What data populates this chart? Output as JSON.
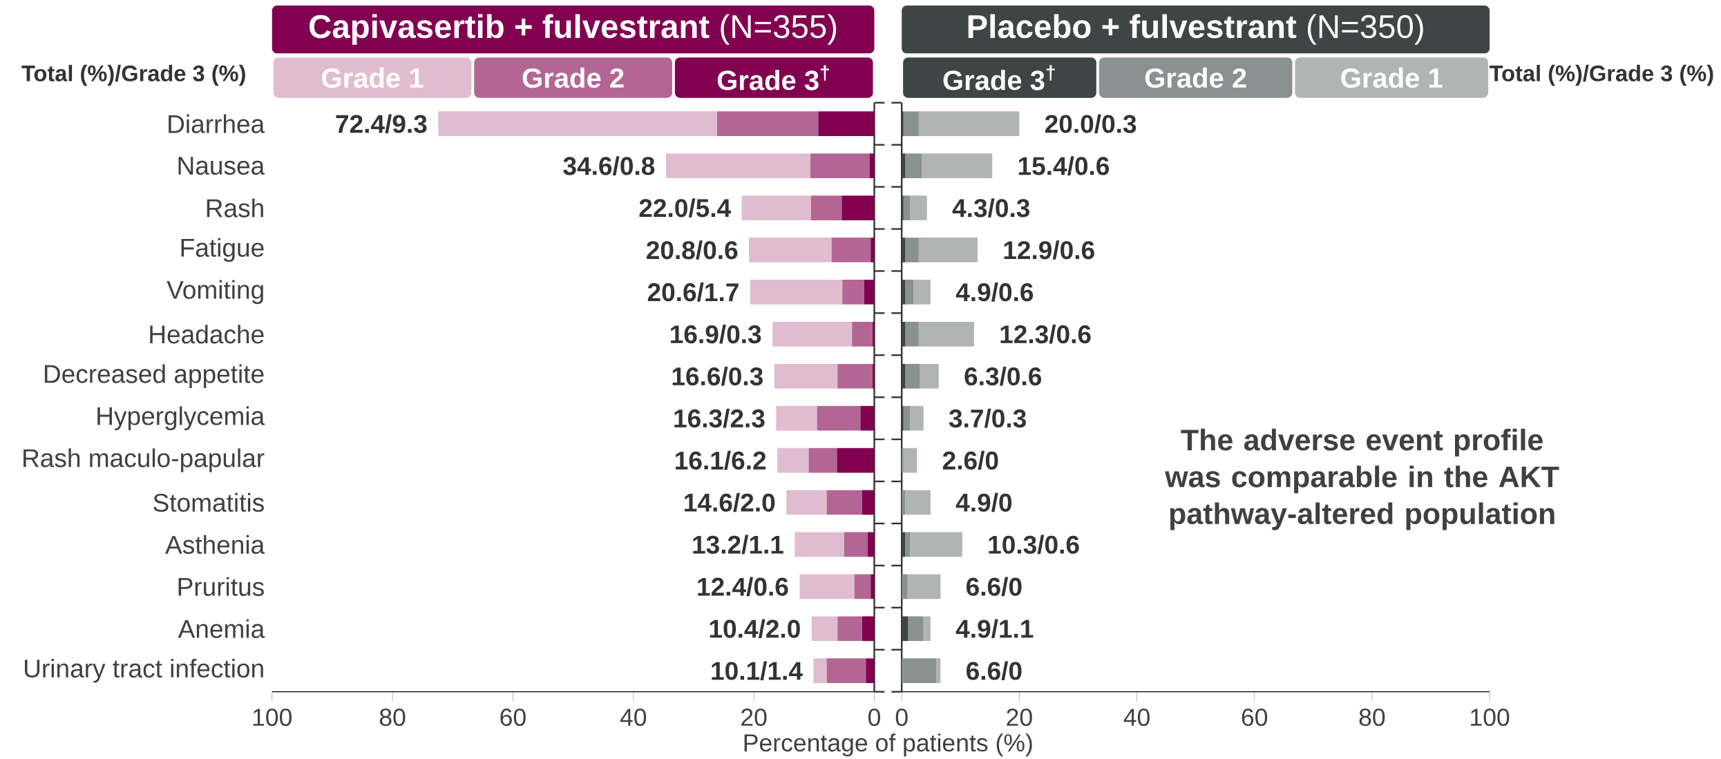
{
  "chart_data": [
    {
      "type": "bar",
      "orientation": "horizontal",
      "stacked": true,
      "title": "**Capivasertib + fulvestrant** (N=355)",
      "xlabel": "Percentage of patients (%)",
      "legend": "top",
      "categories": [
        "Diarrhea",
        "Nausea",
        "Rash",
        "Fatigue",
        "Vomiting",
        "Headache",
        "Decreased appetite",
        "Hyperglycemia",
        "Rash maculo-papular",
        "Stomatitis",
        "Asthenia",
        "Pruritus",
        "Anemia",
        "Urinary tract infection"
      ],
      "series": [
        {
          "name": "Grade 3$^{†}$",
          "color": "#820050",
          "values": [
            9.3,
            0.8,
            5.4,
            0.6,
            1.7,
            0.3,
            0.3,
            2.3,
            6.2,
            2.0,
            1.1,
            0.6,
            2.0,
            1.4
          ]
        },
        {
          "name": "Grade 2",
          "color": "#b36693",
          "values": [
            16.8,
            9.8,
            5.1,
            6.5,
            3.6,
            3.4,
            5.8,
            7.2,
            4.7,
            5.9,
            3.9,
            2.7,
            4.1,
            6.5
          ]
        },
        {
          "name": "Grade 1",
          "color": "#e0bcd1",
          "values": [
            46.3,
            24.0,
            11.5,
            13.7,
            15.3,
            13.2,
            10.5,
            6.8,
            5.2,
            6.7,
            8.2,
            9.1,
            4.3,
            2.2
          ]
        }
      ],
      "totals": [
        "72.4/9.3",
        "34.6/0.8",
        "22.0/5.4",
        "20.8/0.6",
        "20.6/1.7",
        "16.9/0.3",
        "16.6/0.3",
        "16.3/2.3",
        "16.1/6.2",
        "14.6/2.0",
        "13.2/1.1",
        "12.4/0.6",
        "10.4/2.0",
        "10.1/1.4"
      ],
      "xlim": [
        100,
        0
      ],
      "xticks": [
        100,
        80,
        60,
        40,
        20,
        0
      ],
      "annotations": [
        "Total (%)/Grade 3 (%)"
      ]
    },
    {
      "type": "bar",
      "orientation": "horizontal",
      "stacked": true,
      "title": "**Placebo + fulvestrant** (N=350)",
      "legend": "top",
      "categories": [
        null,
        null,
        null,
        null,
        null,
        null,
        null,
        null,
        null,
        null,
        null,
        null,
        null,
        null
      ],
      "series": [
        {
          "name": "Grade 3$^{†}$",
          "color": "#3f4444",
          "values": [
            0.3,
            0.6,
            0.3,
            0.6,
            0.6,
            0.6,
            0.6,
            0.3,
            0,
            0,
            0.6,
            0,
            1.1,
            0
          ]
        },
        {
          "name": "Grade 2",
          "color": "#899191",
          "values": [
            2.6,
            2.8,
            1.1,
            2.3,
            1.4,
            2.3,
            2.5,
            1.1,
            0.3,
            0.6,
            0.8,
            1.0,
            2.6,
            5.9
          ]
        },
        {
          "name": "Grade 1",
          "color": "#b0b5b4",
          "values": [
            17.1,
            12.0,
            2.9,
            10.0,
            2.9,
            9.4,
            3.2,
            2.3,
            2.3,
            4.3,
            8.9,
            5.6,
            1.2,
            0.7
          ]
        }
      ],
      "totals": [
        "20.0/0.3",
        "15.4/0.6",
        "4.3/0.3",
        "12.9/0.6",
        "4.9/0.6",
        "12.3/0.6",
        "6.3/0.6",
        "3.7/0.3",
        "2.6/0",
        "4.9/0",
        "10.3/0.6",
        "6.6/0",
        "4.9/1.1",
        "6.6/0"
      ],
      "xlim": [
        0,
        100
      ],
      "xticks": [
        0,
        20,
        40,
        60,
        80,
        100
      ],
      "annotations": [
        "Total (%)/Grade 3 (%)",
        "The adverse event profile was comparable in the AKT pathway-altered population"
      ]
    }
  ]
}
